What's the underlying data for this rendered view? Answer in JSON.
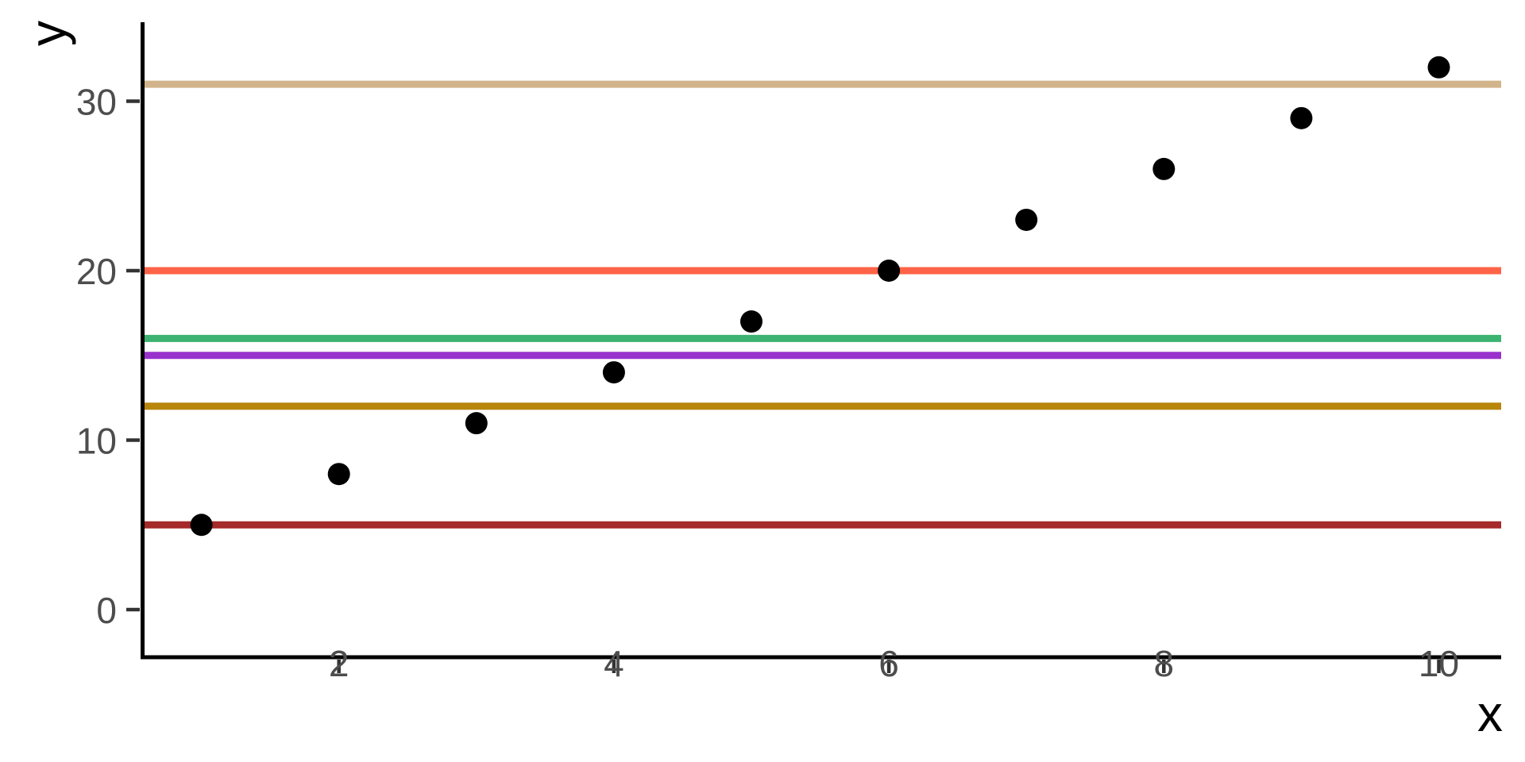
{
  "figure": {
    "background": "#FFFFFF",
    "axis_line_color": "#000000",
    "tick_mark_color": "#333333",
    "tick_label_color": "#4D4D4D",
    "axis_title_color": "#000000"
  },
  "chart_data": {
    "type": "scatter",
    "title": "",
    "xlabel": "x",
    "ylabel": "y",
    "x": [
      1,
      2,
      3,
      4,
      5,
      6,
      7,
      8,
      9,
      10
    ],
    "y": [
      5,
      8,
      11,
      14,
      17,
      20,
      23,
      26,
      29,
      32
    ],
    "point_color": "#000000",
    "x_ticks": [
      "2",
      "4",
      "6",
      "8",
      "10"
    ],
    "x_tick_values": [
      2,
      4,
      6,
      8,
      10
    ],
    "y_ticks": [
      "0",
      "10",
      "20",
      "30"
    ],
    "y_tick_values": [
      0,
      10,
      20,
      30
    ],
    "xlim": [
      0.55,
      10.45
    ],
    "ylim": [
      -2.8,
      34.7
    ],
    "grid": false,
    "legend": "none",
    "hlines": [
      {
        "y": 31,
        "color": "#D2B48C"
      },
      {
        "y": 20,
        "color": "#FF6347"
      },
      {
        "y": 16,
        "color": "#3CB371"
      },
      {
        "y": 15,
        "color": "#9932CC"
      },
      {
        "y": 12,
        "color": "#B8860B"
      },
      {
        "y": 5,
        "color": "#A52A2A"
      }
    ]
  }
}
